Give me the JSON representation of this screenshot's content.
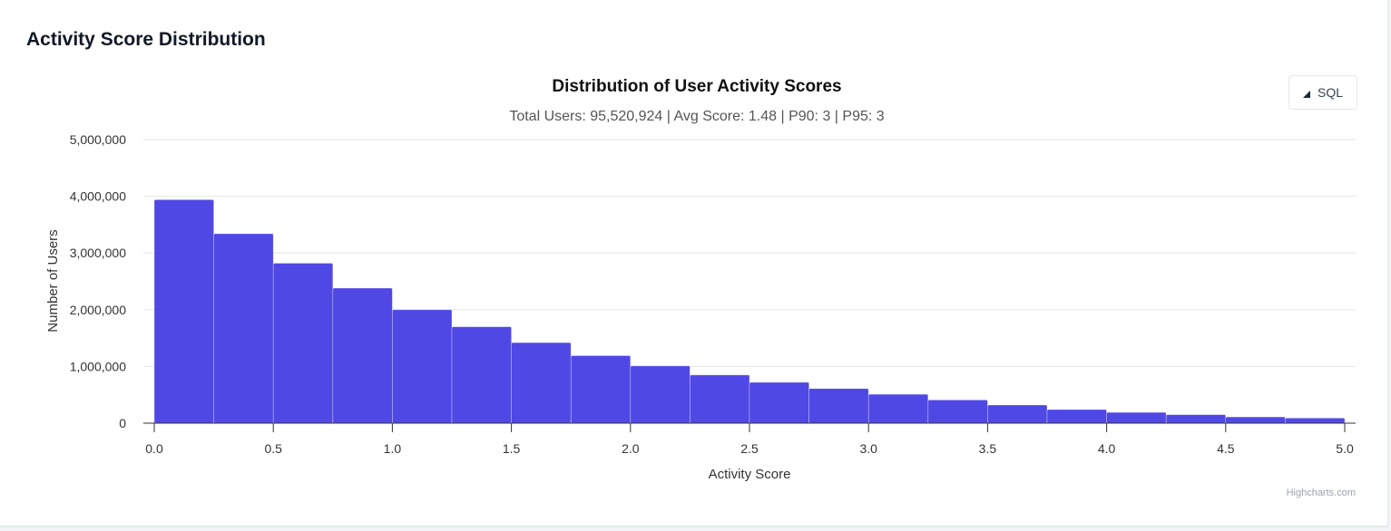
{
  "card": {
    "title": "Activity Score Distribution"
  },
  "toolbar": {
    "sql_label": "SQL",
    "sql_icon": "triangle-collapse-icon"
  },
  "credit": "Highcharts.com",
  "colors": {
    "bar": "#5048e5",
    "grid": "#e6e6e6",
    "axis": "#333333",
    "text": "#333333"
  },
  "chart_data": {
    "type": "bar",
    "title": "Distribution of User Activity Scores",
    "subtitle": "Total Users: 95,520,924 | Avg Score: 1.48 | P90: 3 | P95: 3",
    "xlabel": "Activity Score",
    "ylabel": "Number of Users",
    "xlim": [
      0,
      5
    ],
    "ylim": [
      0,
      5000000
    ],
    "bin_width": 0.25,
    "x_ticks": [
      "0.0",
      "0.5",
      "1.0",
      "1.5",
      "2.0",
      "2.5",
      "3.0",
      "3.5",
      "4.0",
      "4.5",
      "5.0"
    ],
    "y_ticks": [
      "0",
      "1,000,000",
      "2,000,000",
      "3,000,000",
      "4,000,000",
      "5,000,000"
    ],
    "grid": true,
    "legend": "none",
    "bins": [
      0,
      0.25,
      0.5,
      0.75,
      1.0,
      1.25,
      1.5,
      1.75,
      2.0,
      2.25,
      2.5,
      2.75,
      3.0,
      3.25,
      3.5,
      3.75,
      4.0,
      4.25,
      4.5,
      4.75
    ],
    "values": [
      3940000,
      3340000,
      2820000,
      2380000,
      2000000,
      1700000,
      1420000,
      1190000,
      1010000,
      850000,
      720000,
      610000,
      510000,
      410000,
      320000,
      240000,
      190000,
      150000,
      110000,
      90000
    ]
  }
}
